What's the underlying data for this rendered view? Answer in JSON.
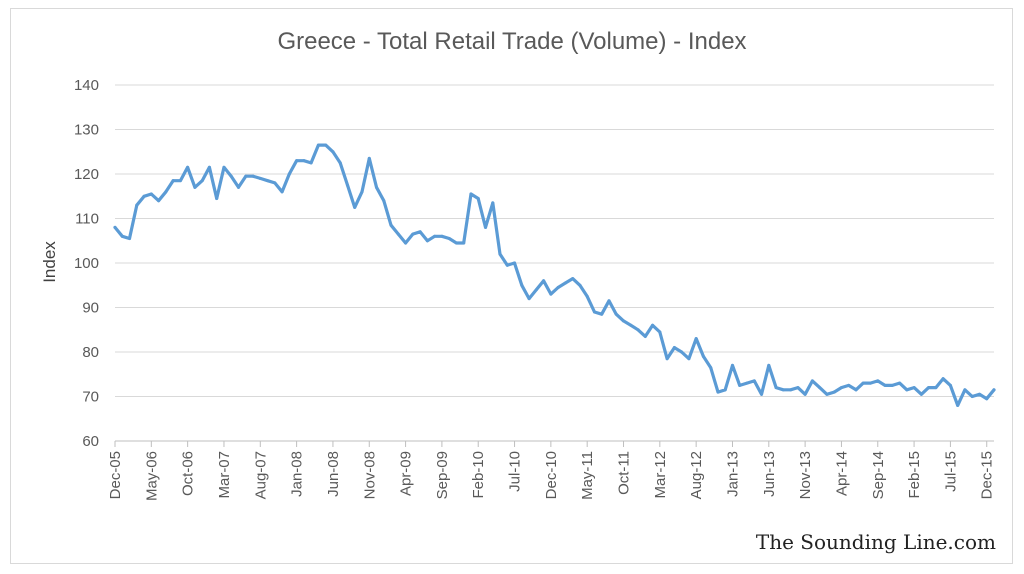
{
  "chart_data": {
    "type": "line",
    "title": "Greece - Total Retail Trade (Volume) - Index",
    "xlabel": "",
    "ylabel": "Index",
    "ylim": [
      60,
      140
    ],
    "yticks": [
      60,
      70,
      80,
      90,
      100,
      110,
      120,
      130,
      140
    ],
    "grid": true,
    "legend": "none",
    "line_color": "#5b9bd5",
    "x_tick_labels": [
      "Dec-05",
      "May-06",
      "Oct-06",
      "Mar-07",
      "Aug-07",
      "Jan-08",
      "Jun-08",
      "Nov-08",
      "Apr-09",
      "Sep-09",
      "Feb-10",
      "Jul-10",
      "Dec-10",
      "May-11",
      "Oct-11",
      "Mar-12",
      "Aug-12",
      "Jan-13",
      "Jun-13",
      "Nov-13",
      "Apr-14",
      "Sep-14",
      "Feb-15",
      "Jul-15",
      "Dec-15"
    ],
    "series": [
      {
        "values": [
          108,
          106,
          105.5,
          113,
          115,
          115.5,
          114,
          116,
          118.5,
          118.5,
          121.5,
          117,
          118.5,
          121.5,
          114.5,
          121.5,
          119.5,
          117,
          119.5,
          119.5,
          119,
          118.5,
          118,
          116,
          120,
          123,
          123,
          122.5,
          126.5,
          126.5,
          125,
          122.5,
          117.5,
          112.5,
          116,
          123.5,
          117,
          114,
          108.5,
          106.5,
          104.5,
          106.5,
          107,
          105,
          106,
          106,
          105.5,
          104.5,
          104.5,
          115.5,
          114.5,
          108,
          113.5,
          102,
          99.5,
          100,
          95,
          92,
          94,
          96,
          93,
          94.5,
          95.5,
          96.5,
          95,
          92.5,
          89,
          88.5,
          91.5,
          88.5,
          87,
          86,
          85,
          83.5,
          86,
          84.5,
          78.5,
          81,
          80,
          78.5,
          83,
          79,
          76.5,
          71,
          71.5,
          77,
          72.5,
          73,
          73.5,
          70.5,
          77,
          72,
          71.5,
          71.5,
          72,
          70.5,
          73.5,
          72,
          70.5,
          71,
          72,
          72.5,
          71.5,
          73,
          73,
          73.5,
          72.5,
          72.5,
          73,
          71.5,
          72,
          70.5,
          72,
          72,
          74,
          72.5,
          68,
          71.5,
          70,
          70.5,
          69.5,
          71.5
        ]
      }
    ]
  },
  "watermark": "The Sounding Line.com"
}
